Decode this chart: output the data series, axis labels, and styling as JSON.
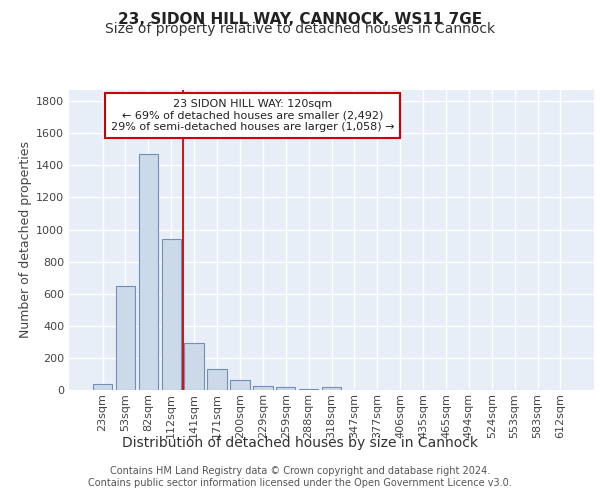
{
  "title_line1": "23, SIDON HILL WAY, CANNOCK, WS11 7GE",
  "title_line2": "Size of property relative to detached houses in Cannock",
  "xlabel": "Distribution of detached houses by size in Cannock",
  "ylabel": "Number of detached properties",
  "categories": [
    "23sqm",
    "53sqm",
    "82sqm",
    "112sqm",
    "141sqm",
    "171sqm",
    "200sqm",
    "229sqm",
    "259sqm",
    "288sqm",
    "318sqm",
    "347sqm",
    "377sqm",
    "406sqm",
    "435sqm",
    "465sqm",
    "494sqm",
    "524sqm",
    "553sqm",
    "583sqm",
    "612sqm"
  ],
  "values": [
    35,
    650,
    1470,
    940,
    295,
    130,
    65,
    25,
    20,
    5,
    20,
    0,
    0,
    0,
    0,
    0,
    0,
    0,
    0,
    0,
    0
  ],
  "bar_color": "#ccd9e8",
  "bar_edgecolor": "#7090b8",
  "bar_linewidth": 0.8,
  "vline_x": 3.5,
  "vline_color": "#cc0000",
  "vline_lw": 1.3,
  "annotation_text": "23 SIDON HILL WAY: 120sqm\n← 69% of detached houses are smaller (2,492)\n29% of semi-detached houses are larger (1,058) →",
  "annotation_box_color": "white",
  "annotation_box_edgecolor": "#cc0000",
  "ylim": [
    0,
    1870
  ],
  "yticks": [
    0,
    200,
    400,
    600,
    800,
    1000,
    1200,
    1400,
    1600,
    1800
  ],
  "bg_color": "#e8eef8",
  "grid_color": "white",
  "footer_text": "Contains HM Land Registry data © Crown copyright and database right 2024.\nContains public sector information licensed under the Open Government Licence v3.0.",
  "title_fontsize": 11,
  "subtitle_fontsize": 10,
  "ylabel_fontsize": 9,
  "xlabel_fontsize": 10,
  "tick_fontsize": 8,
  "annotation_fontsize": 8,
  "footer_fontsize": 7
}
